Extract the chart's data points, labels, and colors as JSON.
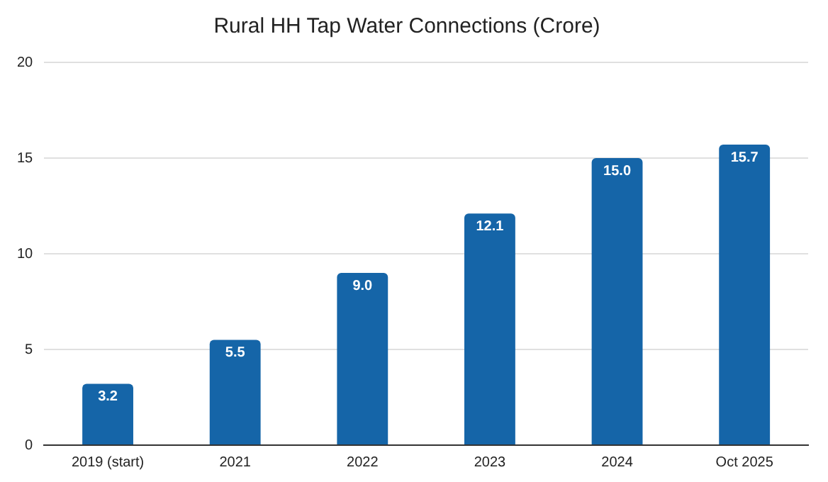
{
  "chart_data": {
    "type": "bar",
    "title": "Rural HH Tap Water Connections (Crore)",
    "categories": [
      "2019 (start)",
      "2021",
      "2022",
      "2023",
      "2024",
      "Oct 2025"
    ],
    "values": [
      3.2,
      5.5,
      9.0,
      12.1,
      15.0,
      15.7
    ],
    "value_labels": [
      "3.2",
      "5.5",
      "9.0",
      "12.1",
      "15.0",
      "15.7"
    ],
    "color": "#1565a8",
    "ylim": [
      0,
      20
    ],
    "yticks": [
      0,
      5,
      10,
      15,
      20
    ],
    "grid": "y",
    "legend": false
  }
}
